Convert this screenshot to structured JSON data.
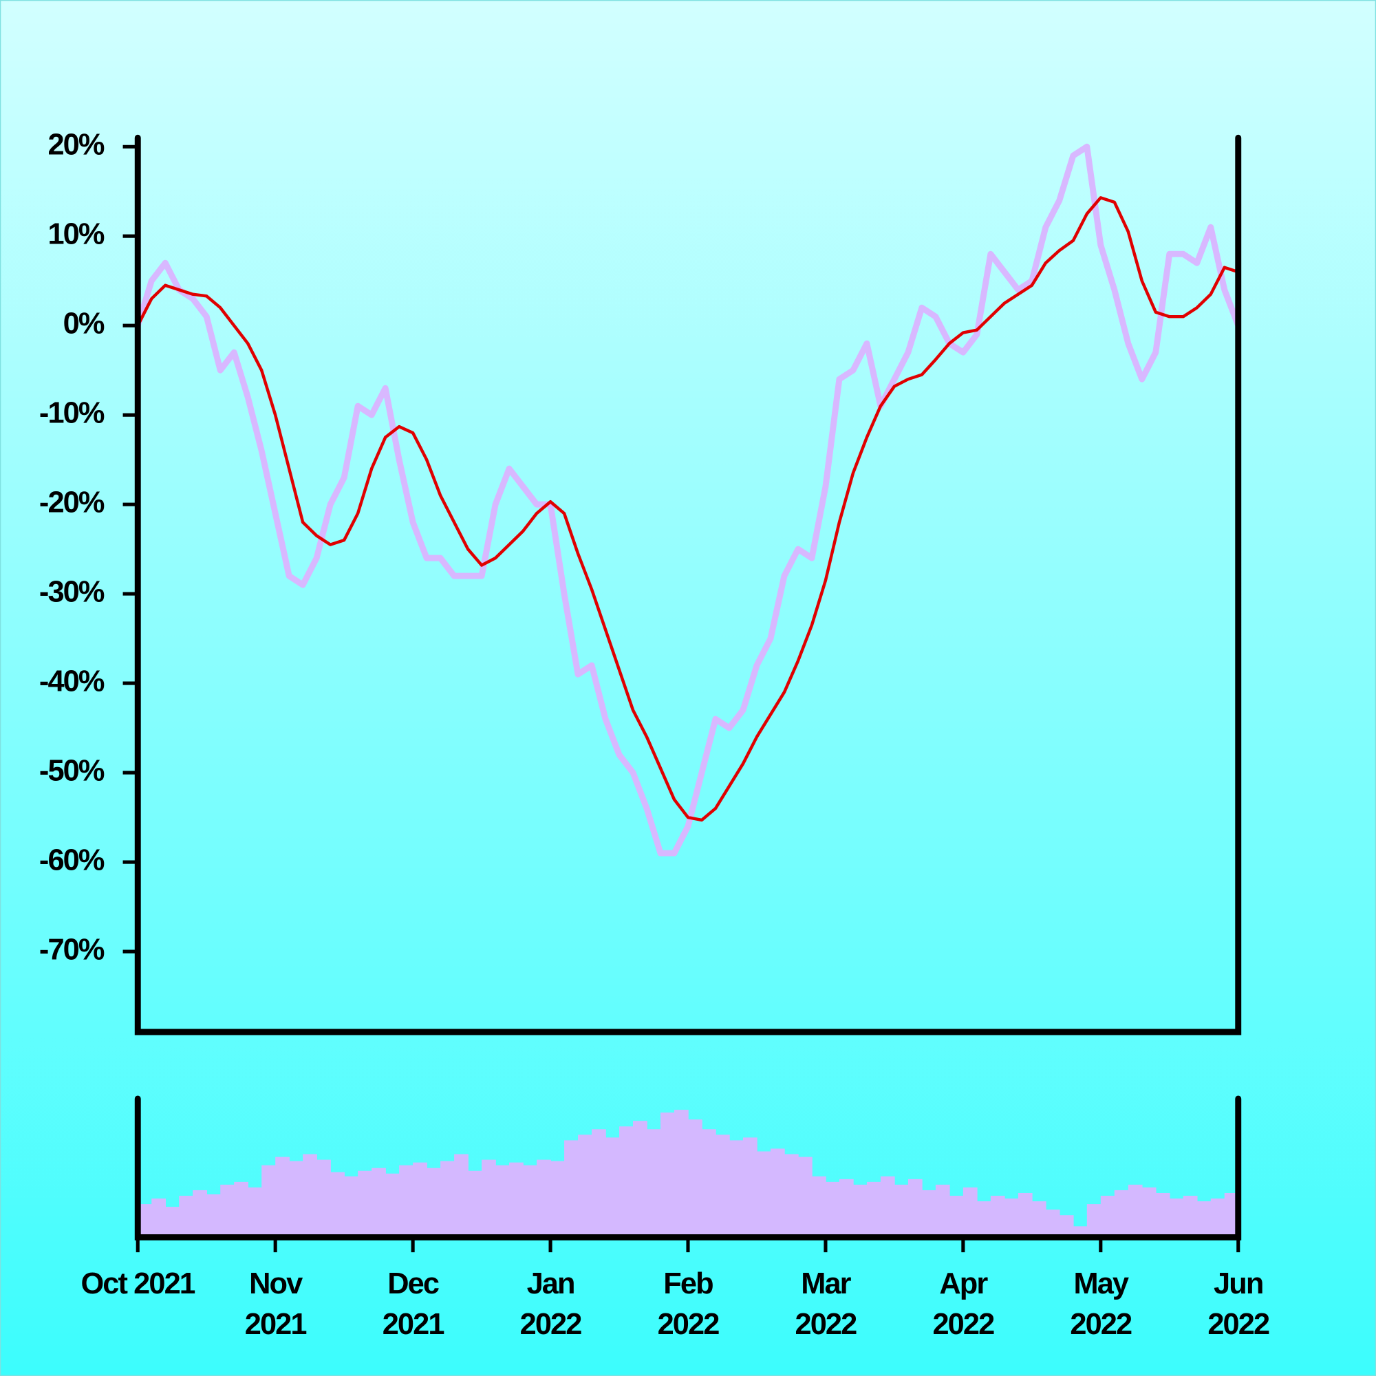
{
  "chart_data": [
    {
      "type": "line",
      "x": [
        0,
        0.1,
        0.2,
        0.3,
        0.4,
        0.5,
        0.6,
        0.7,
        0.8,
        0.9,
        1,
        1.1,
        1.2,
        1.3,
        1.4,
        1.5,
        1.6,
        1.7,
        1.8,
        1.9,
        2,
        2.1,
        2.2,
        2.3,
        2.4,
        2.5,
        2.6,
        2.7,
        2.8,
        2.9,
        3,
        3.1,
        3.2,
        3.3,
        3.4,
        3.5,
        3.6,
        3.7,
        3.8,
        3.9,
        4,
        4.1,
        4.2,
        4.3,
        4.4,
        4.5,
        4.6,
        4.7,
        4.8,
        4.9,
        5,
        5.1,
        5.2,
        5.3,
        5.4,
        5.5,
        5.6,
        5.7,
        5.8,
        5.9,
        6,
        6.1,
        6.2,
        6.3,
        6.4,
        6.5,
        6.6,
        6.7,
        6.8,
        6.9,
        7,
        7.1,
        7.2,
        7.3,
        7.4,
        7.5,
        7.6,
        7.7,
        7.8,
        7.9,
        8
      ],
      "series": [
        {
          "color": "#d8b8ff",
          "values": [
            0,
            5,
            7,
            4,
            3,
            1,
            -5,
            -3,
            -8,
            -14,
            -21,
            -28,
            -29,
            -26,
            -20,
            -17,
            -9,
            -10,
            -7,
            -15,
            -22,
            -26,
            -26,
            -28,
            -28,
            -28,
            -20,
            -16,
            -18,
            -20,
            -20,
            -30,
            -39,
            -38,
            -44,
            -48,
            -50,
            -54,
            -59,
            -59,
            -56,
            -50,
            -44,
            -45,
            -43,
            -38,
            -35,
            -28,
            -25,
            -26,
            -18,
            -6,
            -5,
            -2,
            -9,
            -6,
            -3,
            2,
            1,
            -2,
            -3,
            -1,
            8,
            6,
            4,
            5,
            11,
            14,
            19,
            20,
            9,
            4,
            -2,
            -6,
            -3,
            8,
            8,
            7,
            11,
            4,
            0
          ]
        },
        {
          "color": "#e00000",
          "values": [
            0,
            3,
            4.5,
            4,
            3.5,
            3.3,
            2,
            0,
            -2,
            -5,
            -10,
            -16,
            -22,
            -23.5,
            -24.5,
            -24,
            -21,
            -16,
            -12.5,
            -11.3,
            -12,
            -15,
            -19,
            -22,
            -25,
            -26.8,
            -26,
            -24.5,
            -23,
            -21,
            -19.7,
            -21,
            -25.5,
            -29.5,
            -34,
            -38.5,
            -43,
            -46,
            -49.5,
            -53,
            -55,
            -55.3,
            -54,
            -51.5,
            -49,
            -46,
            -43.5,
            -41,
            -37.5,
            -33.5,
            -28.5,
            -22,
            -16.5,
            -12.5,
            -9,
            -6.8,
            -6,
            -5.5,
            -3.8,
            -2,
            -0.8,
            -0.5,
            1,
            2.5,
            3.5,
            4.5,
            7,
            8.4,
            9.5,
            12.5,
            14.3,
            13.8,
            10.5,
            5,
            1.5,
            1,
            1,
            2,
            3.5,
            6.5,
            6
          ]
        }
      ],
      "xlim": [
        0,
        8
      ],
      "ylim": [
        -79,
        21
      ],
      "yticks": [
        {
          "value": -70,
          "label": "-70%"
        },
        {
          "value": -60,
          "label": "-60%"
        },
        {
          "value": -50,
          "label": "-50%"
        },
        {
          "value": -40,
          "label": "-40%"
        },
        {
          "value": -30,
          "label": "-30%"
        },
        {
          "value": -20,
          "label": "-20%"
        },
        {
          "value": -10,
          "label": "-10%"
        },
        {
          "value": 0,
          "label": "0%"
        },
        {
          "value": 10,
          "label": "10%"
        },
        {
          "value": 20,
          "label": "20%"
        }
      ]
    },
    {
      "type": "bar",
      "color": "#d4b8ff",
      "x": [
        0.05,
        0.15,
        0.25,
        0.35,
        0.45,
        0.55,
        0.65,
        0.75,
        0.85,
        0.95,
        1.05,
        1.15,
        1.25,
        1.35,
        1.45,
        1.55,
        1.65,
        1.75,
        1.85,
        1.95,
        2.05,
        2.15,
        2.25,
        2.35,
        2.45,
        2.55,
        2.65,
        2.75,
        2.85,
        2.95,
        3.05,
        3.15,
        3.25,
        3.35,
        3.45,
        3.55,
        3.65,
        3.75,
        3.85,
        3.95,
        4.05,
        4.15,
        4.25,
        4.35,
        4.45,
        4.55,
        4.65,
        4.75,
        4.85,
        4.95,
        5.05,
        5.15,
        5.25,
        5.35,
        5.45,
        5.55,
        5.65,
        5.75,
        5.85,
        5.95,
        6.05,
        6.15,
        6.25,
        6.35,
        6.45,
        6.55,
        6.65,
        6.75,
        6.85,
        6.95,
        7.05,
        7.15,
        7.25,
        7.35,
        7.45,
        7.55,
        7.65,
        7.75,
        7.85,
        7.95
      ],
      "values": [
        24,
        28,
        22,
        30,
        34,
        31,
        38,
        40,
        36,
        52,
        58,
        55,
        60,
        56,
        47,
        44,
        48,
        50,
        46,
        52,
        54,
        50,
        55,
        60,
        48,
        56,
        52,
        54,
        52,
        56,
        55,
        70,
        74,
        78,
        72,
        80,
        84,
        78,
        90,
        92,
        85,
        78,
        74,
        70,
        72,
        62,
        64,
        60,
        58,
        44,
        40,
        42,
        38,
        40,
        44,
        38,
        42,
        34,
        38,
        30,
        36,
        26,
        30,
        28,
        32,
        26,
        20,
        16,
        8,
        24,
        30,
        34,
        38,
        36,
        32,
        28,
        30,
        26,
        28,
        32
      ],
      "xlim": [
        0,
        8
      ],
      "ylim": [
        0,
        100
      ],
      "xticks": [
        {
          "value": 0,
          "label": "Oct 2021"
        },
        {
          "value": 1,
          "label": "Nov 2021"
        },
        {
          "value": 2,
          "label": "Dec 2021"
        },
        {
          "value": 3,
          "label": "Jan 2022"
        },
        {
          "value": 4,
          "label": "Feb 2022"
        },
        {
          "value": 5,
          "label": "Mar 2022"
        },
        {
          "value": 6,
          "label": "Apr 2022"
        },
        {
          "value": 7,
          "label": "May 2022"
        },
        {
          "value": 8,
          "label": "Jun 2022"
        }
      ]
    }
  ]
}
